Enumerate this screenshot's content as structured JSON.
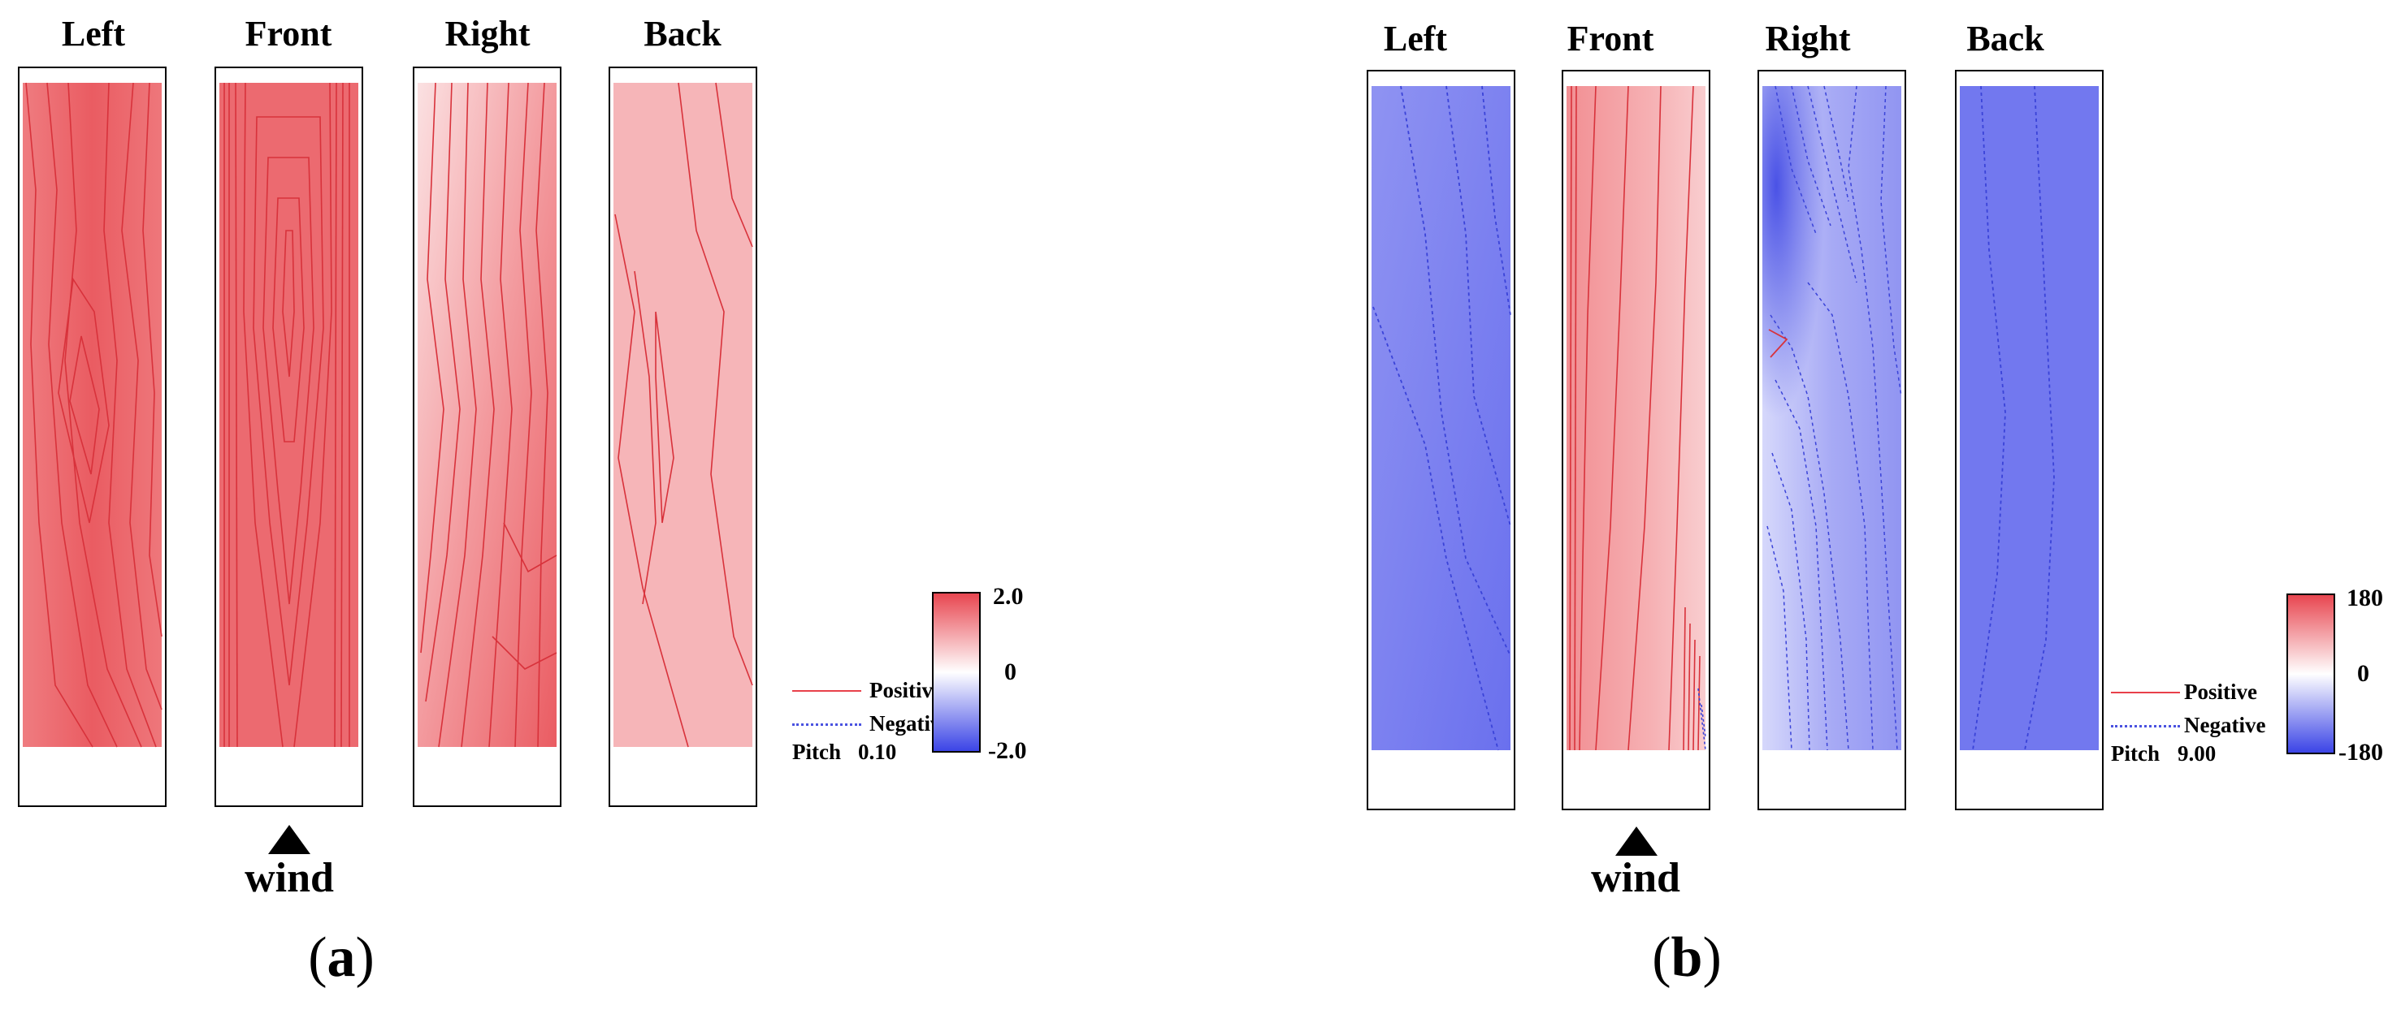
{
  "panels": [
    {
      "label": "a",
      "faces": [
        "Left",
        "Front",
        "Right",
        "Back"
      ],
      "wind_label": "wind",
      "legend": {
        "positive": "Positive",
        "negative": "Negative",
        "pitch_label": "Pitch",
        "pitch_value": "0.10"
      },
      "colorbar": {
        "max": "2.0",
        "mid": "0",
        "min": "-2.0"
      }
    },
    {
      "label": "b",
      "faces": [
        "Left",
        "Front",
        "Right",
        "Back"
      ],
      "wind_label": "wind",
      "legend": {
        "positive": "Positive",
        "negative": "Negative",
        "pitch_label": "Pitch",
        "pitch_value": "9.00"
      },
      "colorbar": {
        "max": "180",
        "mid": "0",
        "min": "-180"
      }
    }
  ],
  "colors": {
    "positive": "#e8404a",
    "negative": "#4a52e0"
  }
}
